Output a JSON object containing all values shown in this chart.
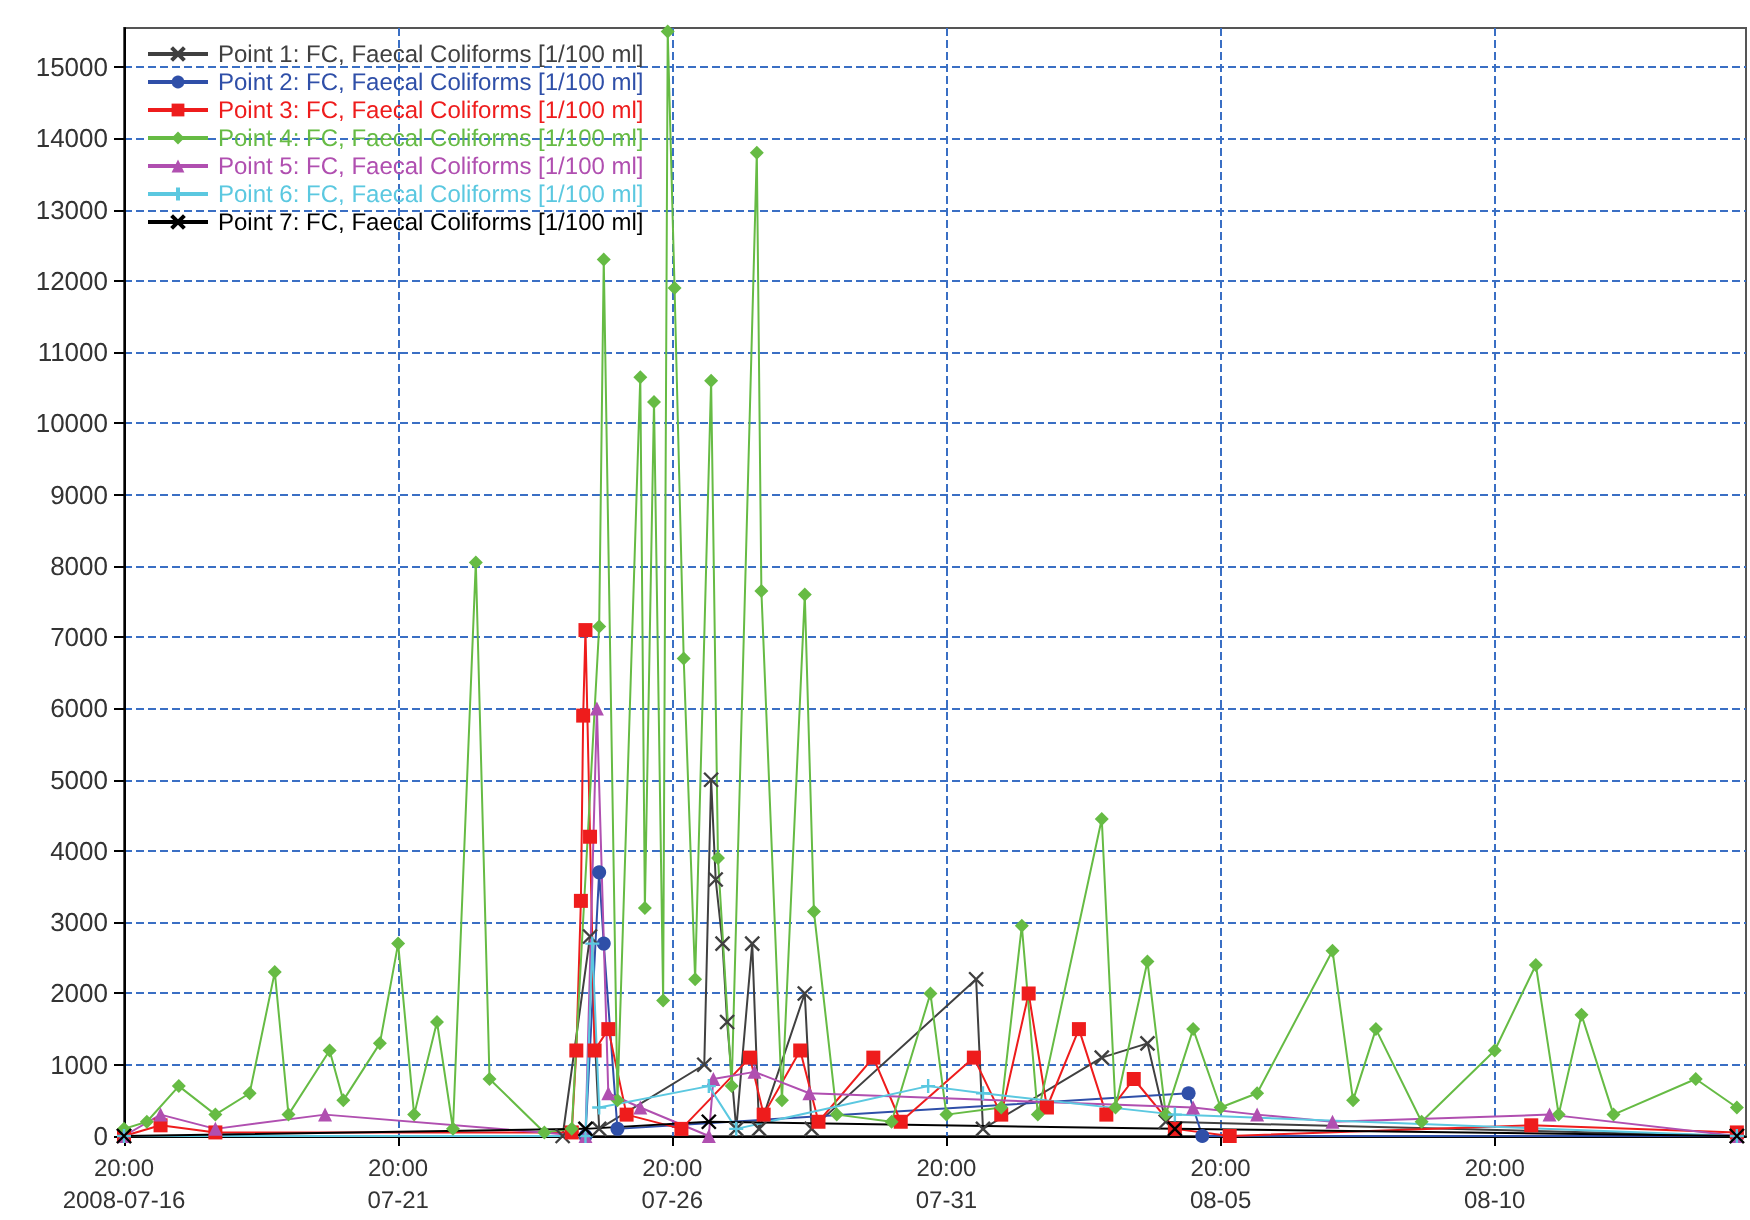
{
  "chart_data": {
    "type": "line",
    "xlim": [
      "2008-07-16T20:00",
      "2008-08-15T10:00"
    ],
    "xticks": [
      {
        "value": "2008-07-16T20:00",
        "label": "20:00\n2008-07-16"
      },
      {
        "value": "2008-07-21T20:00",
        "label": "20:00\n07-21"
      },
      {
        "value": "2008-07-26T20:00",
        "label": "20:00\n07-26"
      },
      {
        "value": "2008-07-31T20:00",
        "label": "20:00\n07-31"
      },
      {
        "value": "2008-08-05T20:00",
        "label": "20:00\n08-05"
      },
      {
        "value": "2008-08-10T20:00",
        "label": "20:00\n08-10"
      }
    ],
    "ylim": [
      0,
      15550
    ],
    "yticks": [
      0,
      1000,
      2000,
      3000,
      4000,
      5000,
      6000,
      7000,
      8000,
      9000,
      10000,
      11000,
      12000,
      13000,
      14000,
      15000
    ],
    "grid": true,
    "legend": "top left",
    "series": [
      {
        "name": "Point 1: FC, Faecal Coliforms [1/100 ml]",
        "color": "#404040",
        "marker": "cross",
        "x": [
          "2008-07-16T20:00",
          "2008-07-24T20:00",
          "2008-07-25T08:00",
          "2008-07-25T12:00",
          "2008-07-27T10:00",
          "2008-07-27T13:00",
          "2008-07-27T15:00",
          "2008-07-27T18:00",
          "2008-07-27T20:00",
          "2008-07-28T00:00",
          "2008-07-28T07:00",
          "2008-07-28T10:00",
          "2008-07-29T06:00",
          "2008-07-29T09:00",
          "2008-08-01T09:00",
          "2008-08-01T12:00",
          "2008-08-03T16:00",
          "2008-08-04T12:00",
          "2008-08-04T20:00",
          "2008-08-15T06:00"
        ],
        "values": [
          0,
          0,
          2800,
          100,
          1000,
          5000,
          3600,
          2700,
          1600,
          100,
          2700,
          100,
          2000,
          100,
          2200,
          100,
          1100,
          1300,
          200,
          0
        ]
      },
      {
        "name": "Point 2: FC, Faecal Coliforms [1/100 ml]",
        "color": "#2f4fa8",
        "marker": "circle",
        "x": [
          "2008-07-16T20:00",
          "2008-07-25T06:00",
          "2008-07-25T12:00",
          "2008-07-25T14:00",
          "2008-07-25T20:00",
          "2008-08-05T06:00",
          "2008-08-05T12:00",
          "2008-08-15T06:00"
        ],
        "values": [
          0,
          0,
          3700,
          2700,
          100,
          600,
          0,
          0
        ]
      },
      {
        "name": "Point 3: FC, Faecal Coliforms [1/100 ml]",
        "color": "#ee1c1c",
        "marker": "square",
        "x": [
          "2008-07-16T20:00",
          "2008-07-17T12:00",
          "2008-07-18T12:00",
          "2008-07-25T00:00",
          "2008-07-25T02:00",
          "2008-07-25T04:00",
          "2008-07-25T05:00",
          "2008-07-25T06:00",
          "2008-07-25T08:00",
          "2008-07-25T10:00",
          "2008-07-25T16:00",
          "2008-07-26T00:00",
          "2008-07-27T00:00",
          "2008-07-28T06:00",
          "2008-07-28T12:00",
          "2008-07-29T04:00",
          "2008-07-29T12:00",
          "2008-07-30T12:00",
          "2008-07-31T00:00",
          "2008-08-01T08:00",
          "2008-08-01T20:00",
          "2008-08-02T08:00",
          "2008-08-02T16:00",
          "2008-08-03T06:00",
          "2008-08-03T18:00",
          "2008-08-04T06:00",
          "2008-08-05T00:00",
          "2008-08-06T00:00",
          "2008-08-11T12:00",
          "2008-08-15T06:00"
        ],
        "values": [
          0,
          150,
          50,
          50,
          1200,
          3300,
          5900,
          7100,
          4200,
          1200,
          1500,
          300,
          100,
          1100,
          300,
          1200,
          200,
          1100,
          200,
          1100,
          300,
          2000,
          400,
          1500,
          300,
          800,
          100,
          0,
          150,
          50
        ]
      },
      {
        "name": "Point 4: FC, Faecal Coliforms [1/100 ml]",
        "color": "#66bb44",
        "marker": "diamond",
        "x": [
          "2008-07-16T20:00",
          "2008-07-17T06:00",
          "2008-07-17T20:00",
          "2008-07-18T12:00",
          "2008-07-19T03:00",
          "2008-07-19T14:00",
          "2008-07-19T20:00",
          "2008-07-20T14:00",
          "2008-07-20T20:00",
          "2008-07-21T12:00",
          "2008-07-21T20:00",
          "2008-07-22T03:00",
          "2008-07-22T13:00",
          "2008-07-22T20:00",
          "2008-07-23T06:00",
          "2008-07-23T12:00",
          "2008-07-24T12:00",
          "2008-07-25T00:00",
          "2008-07-25T12:00",
          "2008-07-25T14:00",
          "2008-07-25T20:00",
          "2008-07-26T06:00",
          "2008-07-26T08:00",
          "2008-07-26T12:00",
          "2008-07-26T16:00",
          "2008-07-26T18:00",
          "2008-07-26T21:00",
          "2008-07-27T01:00",
          "2008-07-27T06:00",
          "2008-07-27T13:00",
          "2008-07-27T16:00",
          "2008-07-27T22:00",
          "2008-07-28T09:00",
          "2008-07-28T11:00",
          "2008-07-28T20:00",
          "2008-07-29T06:00",
          "2008-07-29T10:00",
          "2008-07-29T20:00",
          "2008-07-30T20:00",
          "2008-07-31T13:00",
          "2008-07-31T20:00",
          "2008-08-01T20:00",
          "2008-08-02T05:00",
          "2008-08-02T12:00",
          "2008-08-03T16:00",
          "2008-08-03T22:00",
          "2008-08-04T12:00",
          "2008-08-04T20:00",
          "2008-08-05T08:00",
          "2008-08-05T20:00",
          "2008-08-06T12:00",
          "2008-08-07T21:00",
          "2008-08-08T06:00",
          "2008-08-08T16:00",
          "2008-08-09T12:00",
          "2008-08-10T20:00",
          "2008-08-11T14:00",
          "2008-08-12T00:00",
          "2008-08-12T10:00",
          "2008-08-13T00:00",
          "2008-08-14T12:00",
          "2008-08-15T06:00"
        ],
        "values": [
          100,
          200,
          700,
          300,
          600,
          2300,
          300,
          1200,
          500,
          1300,
          2700,
          300,
          1600,
          100,
          8050,
          800,
          50,
          100,
          7150,
          12300,
          500,
          10650,
          3200,
          10300,
          1900,
          15500,
          11900,
          6700,
          2200,
          10600,
          3900,
          700,
          13800,
          7650,
          500,
          7600,
          3150,
          300,
          200,
          2000,
          300,
          400,
          2950,
          300,
          4450,
          400,
          2450,
          300,
          1500,
          400,
          600,
          2600,
          500,
          1500,
          200,
          1200,
          2400,
          300,
          1700,
          300,
          800,
          400
        ]
      },
      {
        "name": "Point 5: FC, Faecal Coliforms [1/100 ml]",
        "color": "#b04fb0",
        "marker": "triangle",
        "x": [
          "2008-07-16T20:00",
          "2008-07-17T12:00",
          "2008-07-18T12:00",
          "2008-07-20T12:00",
          "2008-07-25T06:00",
          "2008-07-25T11:00",
          "2008-07-25T16:00",
          "2008-07-26T06:00",
          "2008-07-27T12:00",
          "2008-07-27T14:00",
          "2008-07-28T08:00",
          "2008-07-29T08:00",
          "2008-08-05T08:00",
          "2008-08-06T12:00",
          "2008-08-07T21:00",
          "2008-08-11T20:00",
          "2008-08-15T06:00"
        ],
        "values": [
          0,
          300,
          100,
          300,
          0,
          6000,
          600,
          400,
          0,
          800,
          900,
          600,
          400,
          300,
          200,
          300,
          0
        ]
      },
      {
        "name": "Point 6: FC, Faecal Coliforms [1/100 ml]",
        "color": "#5bc8e0",
        "marker": "plus",
        "x": [
          "2008-07-16T20:00",
          "2008-07-25T06:00",
          "2008-07-25T09:00",
          "2008-07-25T12:00",
          "2008-07-27T12:00",
          "2008-07-28T00:00",
          "2008-07-31T12:00",
          "2008-08-01T12:00",
          "2008-08-05T00:00",
          "2008-08-15T06:00"
        ],
        "values": [
          0,
          0,
          2700,
          400,
          700,
          100,
          700,
          600,
          300,
          0
        ]
      },
      {
        "name": "Point 7: FC, Faecal Coliforms [1/100 ml]",
        "color": "#000000",
        "marker": "cross",
        "x": [
          "2008-07-16T20:00",
          "2008-07-25T06:00",
          "2008-07-27T12:00",
          "2008-08-05T00:00",
          "2008-08-15T06:00"
        ],
        "values": [
          0,
          100,
          200,
          100,
          0
        ]
      }
    ]
  }
}
